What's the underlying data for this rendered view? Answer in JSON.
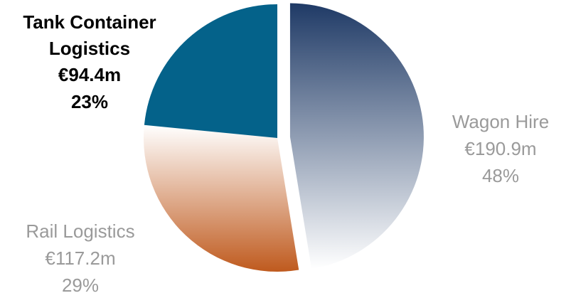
{
  "chart_data": {
    "type": "pie",
    "title": "",
    "slices": [
      {
        "name": "Wagon Hire",
        "value": 190.9,
        "value_label": "€190.9m",
        "percent": 48,
        "percent_label": "48%",
        "gradient": [
          "#1f3a66",
          "#ffffff"
        ],
        "exploded": true,
        "label_color": "#9a9a9a",
        "label_bold": false
      },
      {
        "name": "Rail Logistics",
        "value": 117.2,
        "value_label": "€117.2m",
        "percent": 29,
        "percent_label": "29%",
        "gradient": [
          "#ffffff",
          "#bf5a1e"
        ],
        "exploded": false,
        "label_color": "#9a9a9a",
        "label_bold": false
      },
      {
        "name": "Tank Container Logistics",
        "name_lines": [
          "Tank Container",
          "Logistics"
        ],
        "value": 94.4,
        "value_label": "€94.4m",
        "percent": 23,
        "percent_label": "23%",
        "color": "#04628a",
        "exploded": false,
        "label_color": "#000000",
        "label_bold": true
      }
    ]
  }
}
